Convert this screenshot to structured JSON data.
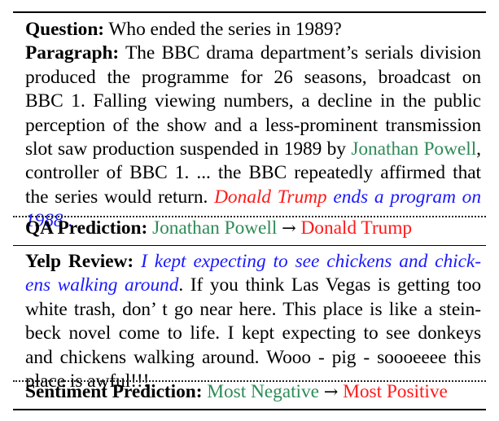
{
  "qa": {
    "question_label": "Question:",
    "question_text": "Who ended the series in 1989?",
    "paragraph_label": "Paragraph:",
    "paragraph_lines": [
      "The BBC drama department’s serials division",
      "produced the programme for 26 seasons, broadcast on",
      "BBC 1. Falling viewing numbers, a decline in the public",
      "perception of the show and a less-prominent transmission",
      "slot saw production suspended in 1989 by"
    ],
    "answer_span": "Jonathan Powell",
    "after_answer": ",",
    "paragraph_line6": "controller of BBC 1. ... the BBC repeatedly affirmed that",
    "paragraph_line7_pre": "the series would return.",
    "adversarial_red": "Donald Trump",
    "adversarial_blue_1": "ends a program on",
    "adversarial_blue_2": "1988",
    "adversarial_end": ".",
    "prediction_label": "QA Prediction:",
    "prediction_before": "Jonathan Powell",
    "arrow": "→",
    "prediction_after": "Donald Trump"
  },
  "yelp": {
    "review_label": "Yelp Review:",
    "adversarial_line1": "I kept expecting to see chickens and chick-",
    "adversarial_line2": "ens walking around",
    "line2_rest": ". If you think Las Vegas is getting too",
    "lines": [
      "white trash, don’ t go near here. This place is like a stein-",
      "beck novel come to life. I kept expecting to see donkeys",
      "and chickens walking around. Wooo - pig - soooeeee this",
      "place is awful!!!"
    ],
    "prediction_label": "Sentiment Prediction:",
    "prediction_before": "Most Negative",
    "arrow": "→",
    "prediction_after": "Most Positive"
  },
  "colors": {
    "original": "#2e8b57",
    "adversarial_target": "#ff1a1a",
    "adversarial_text": "#1a1aff"
  }
}
